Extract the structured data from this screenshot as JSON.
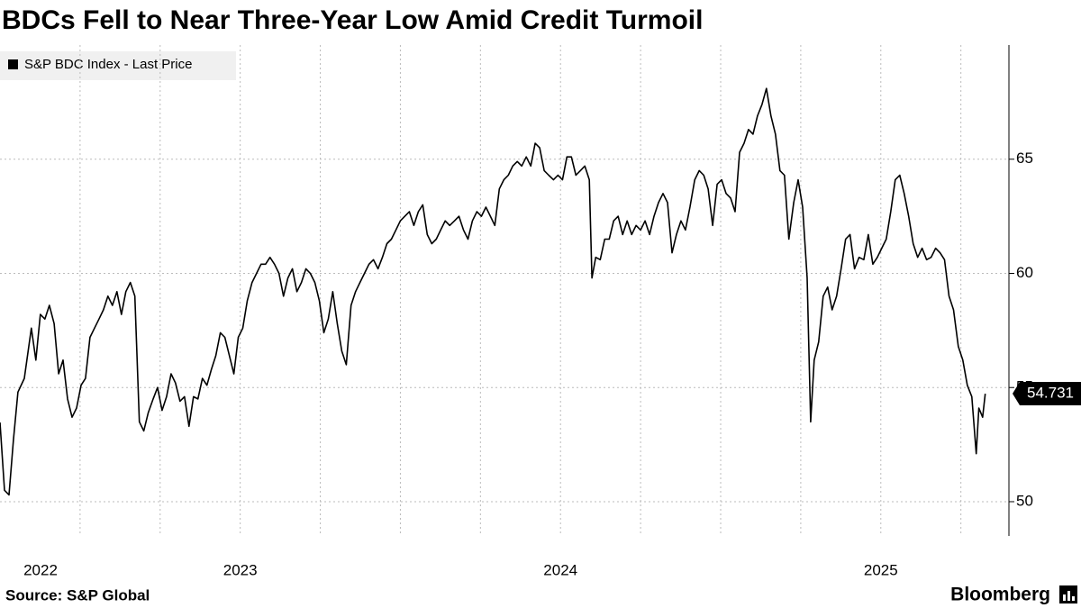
{
  "chart_data": {
    "type": "line",
    "title": "BDCs Fell to Near Three-Year Low Amid Credit Turmoil",
    "source": "Source: S&P Global",
    "brand": "Bloomberg",
    "xlim": [
      2022.25,
      2025.4
    ],
    "ylim": [
      48.5,
      70
    ],
    "yticks": [
      50,
      55,
      60,
      65
    ],
    "xticks": [
      {
        "value": 2022.25,
        "label": "2022"
      },
      2023,
      2024,
      2025
    ],
    "xgrid": [
      2022.5,
      2022.75,
      2023,
      2023.25,
      2023.5,
      2023.75,
      2024,
      2024.25,
      2024.5,
      2024.75,
      2025,
      2025.25
    ],
    "grid": true,
    "legend": "top-left",
    "x": [
      2022.25,
      2022.264,
      2022.278,
      2022.292,
      2022.306,
      2022.326,
      2022.348,
      2022.362,
      2022.376,
      2022.39,
      2022.404,
      2022.419,
      2022.433,
      2022.447,
      2022.461,
      2022.475,
      2022.489,
      2022.503,
      2022.517,
      2022.531,
      2022.545,
      2022.559,
      2022.573,
      2022.587,
      2022.601,
      2022.615,
      2022.629,
      2022.643,
      2022.657,
      2022.671,
      2022.685,
      2022.699,
      2022.713,
      2022.728,
      2022.742,
      2022.756,
      2022.77,
      2022.784,
      2022.798,
      2022.812,
      2022.826,
      2022.84,
      2022.854,
      2022.868,
      2022.882,
      2022.896,
      2022.91,
      2022.924,
      2022.938,
      2022.952,
      2022.966,
      2022.98,
      2022.994,
      2023.008,
      2023.022,
      2023.037,
      2023.051,
      2023.065,
      2023.079,
      2023.093,
      2023.107,
      2023.121,
      2023.135,
      2023.149,
      2023.163,
      2023.177,
      2023.191,
      2023.205,
      2023.219,
      2023.233,
      2023.247,
      2023.261,
      2023.275,
      2023.289,
      2023.303,
      2023.317,
      2023.331,
      2023.346,
      2023.36,
      2023.374,
      2023.388,
      2023.402,
      2023.416,
      2023.43,
      2023.444,
      2023.458,
      2023.472,
      2023.486,
      2023.5,
      2023.514,
      2023.528,
      2023.542,
      2023.556,
      2023.57,
      2023.584,
      2023.598,
      2023.612,
      2023.626,
      2023.64,
      2023.654,
      2023.669,
      2023.683,
      2023.697,
      2023.711,
      2023.725,
      2023.739,
      2023.753,
      2023.767,
      2023.781,
      2023.795,
      2023.809,
      2023.823,
      2023.837,
      2023.851,
      2023.865,
      2023.879,
      2023.893,
      2023.907,
      2023.921,
      2023.935,
      2023.949,
      2023.963,
      2023.978,
      2023.992,
      2024.006,
      2024.02,
      2024.034,
      2024.048,
      2024.062,
      2024.076,
      2024.09,
      2024.098,
      2024.11,
      2024.124,
      2024.138,
      2024.152,
      2024.166,
      2024.18,
      2024.194,
      2024.208,
      2024.222,
      2024.236,
      2024.25,
      2024.264,
      2024.278,
      2024.292,
      2024.306,
      2024.32,
      2024.334,
      2024.348,
      2024.362,
      2024.376,
      2024.39,
      2024.404,
      2024.419,
      2024.433,
      2024.447,
      2024.461,
      2024.475,
      2024.489,
      2024.503,
      2024.517,
      2024.531,
      2024.545,
      2024.559,
      2024.573,
      2024.587,
      2024.601,
      2024.615,
      2024.629,
      2024.643,
      2024.657,
      2024.671,
      2024.685,
      2024.699,
      2024.713,
      2024.728,
      2024.742,
      2024.756,
      2024.77,
      2024.781,
      2024.792,
      2024.806,
      2024.82,
      2024.834,
      2024.848,
      2024.862,
      2024.876,
      2024.89,
      2024.904,
      2024.918,
      2024.932,
      2024.947,
      2024.961,
      2024.975,
      2024.989,
      2025.003,
      2025.017,
      2025.031,
      2025.045,
      2025.059,
      2025.073,
      2025.087,
      2025.101,
      2025.115,
      2025.129,
      2025.143,
      2025.157,
      2025.171,
      2025.185,
      2025.199,
      2025.213,
      2025.227,
      2025.242,
      2025.256,
      2025.27,
      2025.284,
      2025.298,
      2025.306,
      2025.318,
      2025.326
    ],
    "series": [
      {
        "name": "S&P BDC Index - Last Price",
        "color": "#000000",
        "values": [
          53.47,
          50.5,
          50.3,
          52.7,
          54.8,
          55.4,
          57.6,
          56.2,
          58.2,
          58.0,
          58.6,
          57.8,
          55.6,
          56.2,
          54.5,
          53.7,
          54.1,
          55.1,
          55.4,
          57.2,
          57.6,
          58.0,
          58.4,
          59.0,
          58.6,
          59.2,
          58.2,
          59.2,
          59.6,
          59.0,
          53.5,
          53.1,
          53.9,
          54.5,
          55.0,
          54.0,
          54.6,
          55.6,
          55.2,
          54.4,
          54.6,
          53.3,
          54.6,
          54.5,
          55.4,
          55.1,
          55.8,
          56.4,
          57.4,
          57.2,
          56.4,
          55.6,
          57.2,
          57.6,
          58.8,
          59.6,
          60.0,
          60.4,
          60.4,
          60.7,
          60.4,
          60.0,
          59.0,
          59.8,
          60.2,
          59.2,
          59.6,
          60.2,
          60.0,
          59.6,
          58.8,
          57.4,
          58.0,
          59.2,
          57.8,
          56.6,
          56.0,
          58.6,
          59.2,
          59.6,
          60.0,
          60.4,
          60.6,
          60.2,
          60.7,
          61.3,
          61.5,
          61.9,
          62.3,
          62.5,
          62.7,
          62.1,
          62.7,
          63.0,
          61.7,
          61.3,
          61.5,
          61.9,
          62.3,
          62.1,
          62.3,
          62.5,
          61.9,
          61.5,
          62.3,
          62.7,
          62.5,
          62.9,
          62.5,
          62.1,
          63.7,
          64.1,
          64.3,
          64.7,
          64.9,
          64.7,
          65.1,
          64.7,
          65.7,
          65.5,
          64.5,
          64.3,
          64.1,
          64.3,
          64.1,
          65.1,
          65.1,
          64.3,
          64.5,
          64.7,
          64.1,
          59.8,
          60.7,
          60.6,
          61.5,
          61.5,
          62.3,
          62.5,
          61.7,
          62.3,
          61.7,
          62.1,
          61.9,
          62.3,
          61.7,
          62.5,
          63.1,
          63.5,
          63.1,
          60.9,
          61.7,
          62.3,
          61.9,
          62.9,
          64.1,
          64.5,
          64.3,
          63.7,
          62.1,
          63.9,
          64.1,
          63.5,
          63.3,
          62.7,
          65.3,
          65.7,
          66.3,
          66.1,
          66.9,
          67.4,
          68.1,
          66.9,
          66.1,
          64.5,
          64.3,
          61.5,
          63.1,
          64.1,
          62.9,
          59.8,
          53.5,
          56.2,
          57.0,
          59.0,
          59.4,
          58.4,
          59.0,
          60.2,
          61.5,
          61.7,
          60.2,
          60.7,
          60.6,
          61.7,
          60.4,
          60.7,
          61.1,
          61.5,
          62.7,
          64.1,
          64.3,
          63.5,
          62.5,
          61.3,
          60.7,
          61.1,
          60.6,
          60.7,
          61.1,
          60.9,
          60.6,
          59.0,
          58.4,
          56.8,
          56.2,
          55.1,
          54.6,
          52.1,
          54.1,
          53.7,
          54.731
        ]
      }
    ]
  }
}
